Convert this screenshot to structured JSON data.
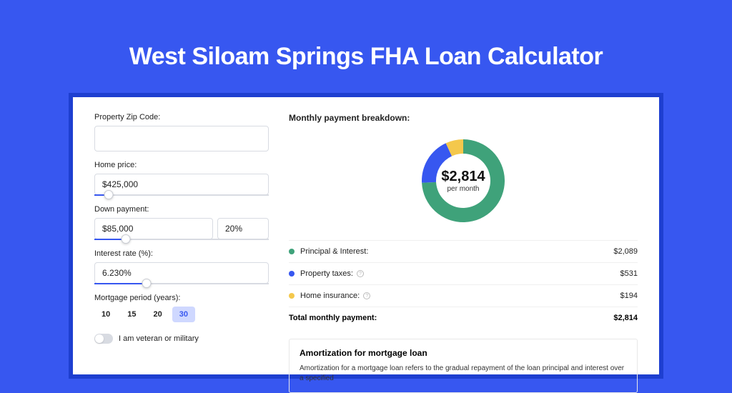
{
  "page": {
    "title": "West Siloam Springs FHA Loan Calculator",
    "bg_color": "#3757f0"
  },
  "form": {
    "zip_label": "Property Zip Code:",
    "zip_value": "",
    "home_price_label": "Home price:",
    "home_price_value": "$425,000",
    "home_price_slider_pct": 8,
    "down_label": "Down payment:",
    "down_amount": "$85,000",
    "down_pct": "20%",
    "down_slider_pct": 18,
    "rate_label": "Interest rate (%):",
    "rate_value": "6.230%",
    "rate_slider_pct": 30,
    "period_label": "Mortgage period (years):",
    "periods": [
      "10",
      "15",
      "20",
      "30"
    ],
    "period_active_index": 3,
    "veteran_label": "I am veteran or military",
    "veteran_on": false
  },
  "breakdown": {
    "title": "Monthly payment breakdown:",
    "donut": {
      "center_amount": "$2,814",
      "center_sub": "per month",
      "slices": [
        {
          "label": "Principal & Interest",
          "value": 2089,
          "color": "#3fa27a"
        },
        {
          "label": "Property taxes",
          "value": 531,
          "color": "#3757f0"
        },
        {
          "label": "Home insurance",
          "value": 194,
          "color": "#f4c84c"
        }
      ]
    },
    "rows": [
      {
        "dot": "#3fa27a",
        "label": "Principal & Interest:",
        "info": false,
        "value": "$2,089"
      },
      {
        "dot": "#3757f0",
        "label": "Property taxes:",
        "info": true,
        "value": "$531"
      },
      {
        "dot": "#f4c84c",
        "label": "Home insurance:",
        "info": true,
        "value": "$194"
      }
    ],
    "total_label": "Total monthly payment:",
    "total_value": "$2,814"
  },
  "amortization": {
    "title": "Amortization for mortgage loan",
    "text": "Amortization for a mortgage loan refers to the gradual repayment of the loan principal and interest over a specified"
  }
}
